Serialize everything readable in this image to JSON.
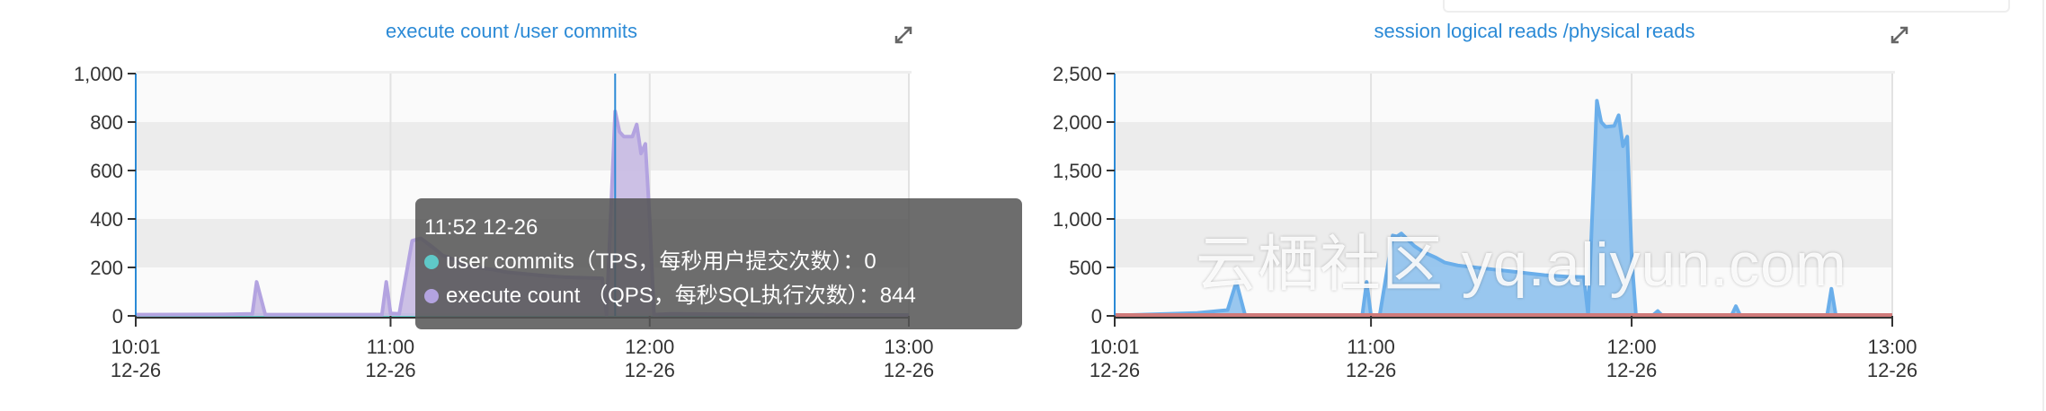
{
  "charts": [
    {
      "title": "execute count /user commits",
      "expand_icon": "expand-arrows-icon",
      "chart_data": {
        "type": "area",
        "x_ticks": [
          {
            "time": "10:01",
            "date": "12-26"
          },
          {
            "time": "11:00",
            "date": "12-26"
          },
          {
            "time": "12:00",
            "date": "12-26"
          },
          {
            "time": "13:00",
            "date": "12-26"
          }
        ],
        "xlim": [
          "10:01",
          "13:00"
        ],
        "y_ticks": [
          "0",
          "200",
          "400",
          "600",
          "800",
          "1,000"
        ],
        "ylim": [
          0,
          1000
        ],
        "grid": "horizontal bands + vertical lines",
        "hover_time": "11:52",
        "series": [
          {
            "name": "user commits（TPS，每秒用户提交次数）",
            "color": "#5fc8c8",
            "points": [
              [
                "10:01",
                0
              ],
              [
                "11:50",
                0
              ],
              [
                "12:00",
                0
              ],
              [
                "13:00",
                0
              ]
            ]
          },
          {
            "name": "execute count （QPS，每秒SQL执行次数）",
            "color": "#b3a3e0",
            "points": [
              [
                "10:01",
                5
              ],
              [
                "10:20",
                6
              ],
              [
                "10:28",
                8
              ],
              [
                "10:29",
                140
              ],
              [
                "10:31",
                5
              ],
              [
                "10:58",
                5
              ],
              [
                "10:59",
                140
              ],
              [
                "11:00",
                10
              ],
              [
                "11:02",
                8
              ],
              [
                "11:05",
                310
              ],
              [
                "11:06",
                315
              ],
              [
                "11:07",
                320
              ],
              [
                "11:10",
                280
              ],
              [
                "11:12",
                250
              ],
              [
                "11:15",
                230
              ],
              [
                "11:17",
                210
              ],
              [
                "11:20",
                200
              ],
              [
                "11:24",
                190
              ],
              [
                "11:27",
                180
              ],
              [
                "11:30",
                175
              ],
              [
                "11:33",
                170
              ],
              [
                "11:36",
                165
              ],
              [
                "11:40",
                160
              ],
              [
                "11:45",
                157
              ],
              [
                "11:49",
                155
              ],
              [
                "11:50",
                5
              ],
              [
                "11:52",
                844
              ],
              [
                "11:53",
                760
              ],
              [
                "11:54",
                740
              ],
              [
                "11:56",
                740
              ],
              [
                "11:57",
                790
              ],
              [
                "11:58",
                670
              ],
              [
                "11:59",
                710
              ],
              [
                "12:00",
                400
              ],
              [
                "12:01",
                5
              ],
              [
                "12:05",
                8
              ],
              [
                "12:30",
                5
              ],
              [
                "13:00",
                3
              ]
            ]
          }
        ]
      }
    },
    {
      "title": "session logical reads /physical reads",
      "expand_icon": "expand-arrows-icon",
      "chart_data": {
        "type": "area",
        "x_ticks": [
          {
            "time": "10:01",
            "date": "12-26"
          },
          {
            "time": "11:00",
            "date": "12-26"
          },
          {
            "time": "12:00",
            "date": "12-26"
          },
          {
            "time": "13:00",
            "date": "12-26"
          }
        ],
        "xlim": [
          "10:01",
          "13:00"
        ],
        "y_ticks": [
          "0",
          "500",
          "1,000",
          "1,500",
          "2,000",
          "2,500"
        ],
        "ylim": [
          0,
          2500
        ],
        "grid": "horizontal bands + vertical lines",
        "series": [
          {
            "color": "#6aaeea",
            "points": [
              [
                "10:01",
                5
              ],
              [
                "10:20",
                30
              ],
              [
                "10:27",
                60
              ],
              [
                "10:29",
                350
              ],
              [
                "10:31",
                10
              ],
              [
                "10:58",
                5
              ],
              [
                "10:59",
                350
              ],
              [
                "11:00",
                5
              ],
              [
                "11:02",
                5
              ],
              [
                "11:05",
                830
              ],
              [
                "11:06",
                820
              ],
              [
                "11:07",
                850
              ],
              [
                "11:10",
                720
              ],
              [
                "11:12",
                660
              ],
              [
                "11:15",
                600
              ],
              [
                "11:17",
                550
              ],
              [
                "11:20",
                520
              ],
              [
                "11:24",
                500
              ],
              [
                "11:28",
                480
              ],
              [
                "11:32",
                460
              ],
              [
                "11:36",
                440
              ],
              [
                "11:40",
                420
              ],
              [
                "11:45",
                405
              ],
              [
                "11:49",
                400
              ],
              [
                "11:50",
                5
              ],
              [
                "11:52",
                2220
              ],
              [
                "11:53",
                2000
              ],
              [
                "11:54",
                1950
              ],
              [
                "11:56",
                1960
              ],
              [
                "11:57",
                2070
              ],
              [
                "11:58",
                1750
              ],
              [
                "11:59",
                1850
              ],
              [
                "12:00",
                600
              ],
              [
                "12:01",
                5
              ],
              [
                "12:05",
                10
              ],
              [
                "12:06",
                50
              ],
              [
                "12:07",
                5
              ],
              [
                "12:23",
                5
              ],
              [
                "12:24",
                100
              ],
              [
                "12:25",
                5
              ],
              [
                "12:45",
                5
              ],
              [
                "12:46",
                280
              ],
              [
                "12:47",
                5
              ],
              [
                "13:00",
                5
              ]
            ]
          },
          {
            "color": "#d07a7a",
            "points": [
              [
                "10:01",
                0
              ],
              [
                "12:00",
                0
              ],
              [
                "13:00",
                0
              ]
            ]
          }
        ]
      }
    }
  ],
  "tooltip": {
    "time": "11:52 12-26",
    "rows": [
      {
        "label": "user commits（TPS，每秒用户提交次数）",
        "value": "：0",
        "color": "#5fc8c8"
      },
      {
        "label": "execute count （QPS，每秒SQL执行次数）",
        "value": "：844",
        "color": "#b3a3e0"
      }
    ]
  },
  "watermark": "云栖社区 yq.aliyun.com"
}
